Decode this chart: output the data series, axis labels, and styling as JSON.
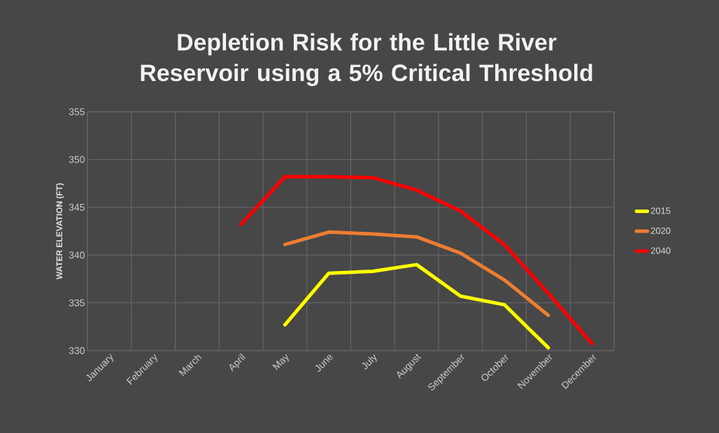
{
  "chart_data": {
    "type": "line",
    "title": "Depletion Risk for the Little River Reservoir using a 5% Critical Threshold",
    "ylabel": "WATER ELEVATION (FT)",
    "categories": [
      "January",
      "February",
      "March",
      "April",
      "May",
      "June",
      "July",
      "August",
      "September",
      "October",
      "November",
      "December"
    ],
    "ylim": [
      330,
      355
    ],
    "yticks": [
      330,
      335,
      340,
      345,
      350,
      355
    ],
    "grid": true,
    "legend": "right",
    "marker": "none",
    "line_style": "solid",
    "series": [
      {
        "name": "2015",
        "color": "#ffff00",
        "values": [
          null,
          null,
          null,
          null,
          332.7,
          338.1,
          338.3,
          339.0,
          335.7,
          334.8,
          330.3,
          null
        ]
      },
      {
        "name": "2020",
        "color": "#ed7d31",
        "values": [
          null,
          null,
          null,
          null,
          341.1,
          342.4,
          342.2,
          341.9,
          340.2,
          337.4,
          333.7,
          null
        ]
      },
      {
        "name": "2040",
        "color": "#ff0000",
        "values": [
          null,
          null,
          null,
          343.2,
          348.2,
          348.2,
          348.1,
          346.8,
          344.6,
          341.1,
          336.0,
          330.7
        ]
      }
    ]
  }
}
